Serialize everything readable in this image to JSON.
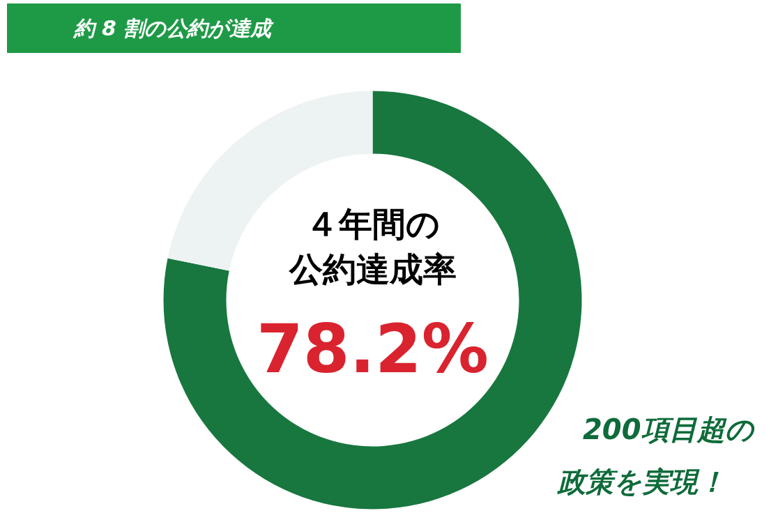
{
  "chart_data": {
    "type": "donut",
    "title": "約 8 割の公約が達成",
    "categories": [
      null,
      null
    ],
    "values": [
      78.2,
      21.8
    ],
    "colors": [
      "#17773f",
      "#edf2f2"
    ],
    "value_labels": [
      "78.2%",
      null
    ],
    "annotations": [
      "４年間の",
      "公約達成率",
      "200項目超の",
      "政策を実現！"
    ]
  }
}
